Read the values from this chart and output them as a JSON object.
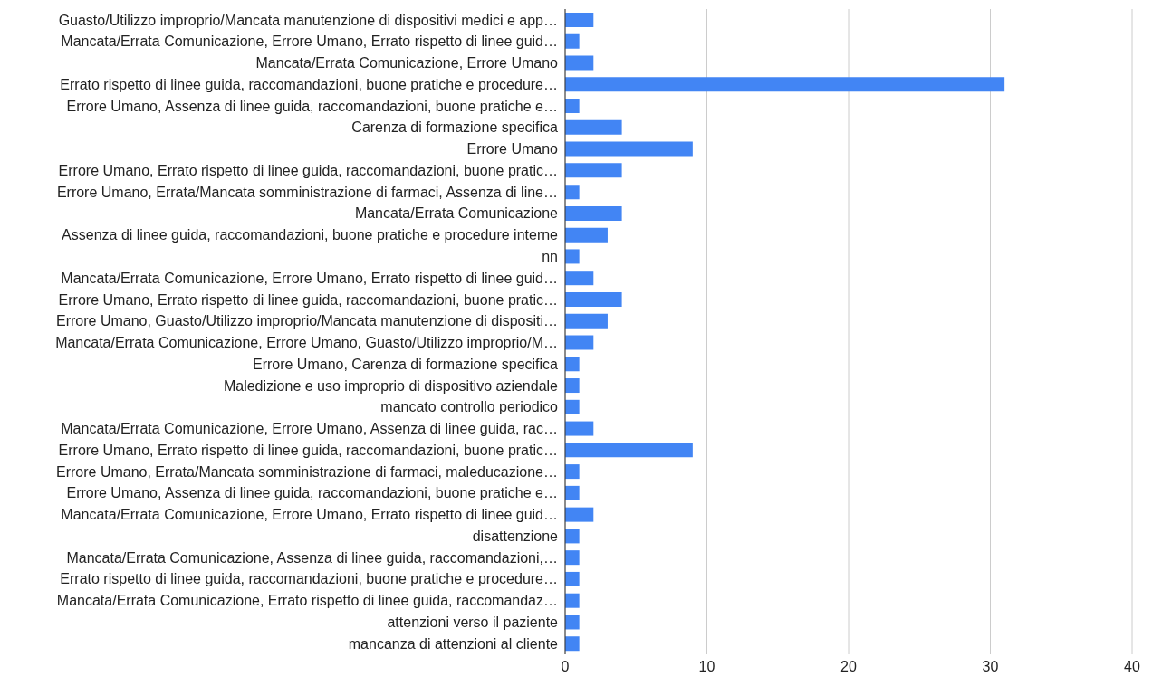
{
  "chart_data": {
    "type": "bar",
    "orientation": "horizontal",
    "categories": [
      "Guasto/Utilizzo improprio/Mancata manutenzione di dispositivi medici e app…",
      "Mancata/Errata Comunicazione, Errore Umano, Errato rispetto di linee guid…",
      "Mancata/Errata Comunicazione, Errore Umano",
      "Errato rispetto di linee guida, raccomandazioni, buone pratiche e procedure…",
      "Errore Umano, Assenza di linee guida, raccomandazioni, buone pratiche e…",
      "Carenza di formazione specifica",
      "Errore Umano",
      "Errore Umano, Errato rispetto di linee guida, raccomandazioni, buone pratic…",
      "Errore Umano, Errata/Mancata somministrazione di farmaci, Assenza di line…",
      "Mancata/Errata Comunicazione",
      "Assenza di linee guida, raccomandazioni, buone pratiche e procedure interne",
      "nn",
      "Mancata/Errata Comunicazione, Errore Umano, Errato rispetto di linee guid…",
      "Errore Umano, Errato rispetto di linee guida, raccomandazioni, buone pratic…",
      "Errore Umano, Guasto/Utilizzo improprio/Mancata manutenzione di dispositi…",
      "Mancata/Errata Comunicazione, Errore Umano, Guasto/Utilizzo improprio/M…",
      "Errore Umano, Carenza di formazione specifica",
      "Maledizione e uso improprio di dispositivo aziendale",
      "mancato controllo periodico",
      "Mancata/Errata Comunicazione, Errore Umano, Assenza di linee guida, rac…",
      "Errore Umano, Errato rispetto di linee guida, raccomandazioni, buone pratic…",
      "Errore Umano, Errata/Mancata somministrazione di farmaci, maleducazione…",
      "Errore Umano, Assenza di linee guida, raccomandazioni, buone pratiche e…",
      "Mancata/Errata Comunicazione, Errore Umano, Errato rispetto di linee guid…",
      "disattenzione",
      "Mancata/Errata Comunicazione, Assenza di linee guida, raccomandazioni,…",
      "Errato rispetto di linee guida, raccomandazioni, buone pratiche e procedure…",
      "Mancata/Errata Comunicazione, Errato rispetto di linee guida, raccomandaz…",
      "attenzioni verso il paziente",
      "mancanza di attenzioni al cliente"
    ],
    "values": [
      2,
      1,
      2,
      31,
      1,
      4,
      9,
      4,
      1,
      4,
      3,
      1,
      2,
      4,
      3,
      2,
      1,
      1,
      1,
      2,
      9,
      1,
      1,
      2,
      1,
      1,
      1,
      1,
      1,
      1
    ],
    "color": "#4285f4",
    "xlim": [
      0,
      40
    ],
    "xticks": [
      0,
      10,
      20,
      30,
      40
    ],
    "grid": "x"
  }
}
